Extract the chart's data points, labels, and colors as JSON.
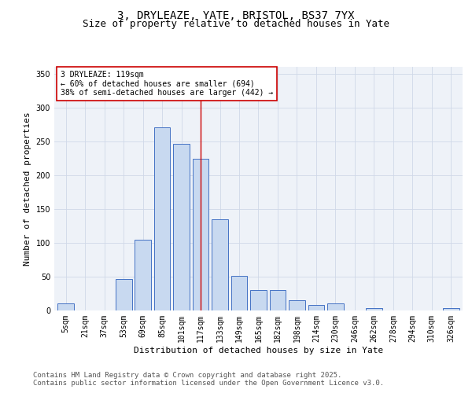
{
  "title_line1": "3, DRYLEAZE, YATE, BRISTOL, BS37 7YX",
  "title_line2": "Size of property relative to detached houses in Yate",
  "xlabel": "Distribution of detached houses by size in Yate",
  "ylabel": "Number of detached properties",
  "bar_labels": [
    "5sqm",
    "21sqm",
    "37sqm",
    "53sqm",
    "69sqm",
    "85sqm",
    "101sqm",
    "117sqm",
    "133sqm",
    "149sqm",
    "165sqm",
    "182sqm",
    "198sqm",
    "214sqm",
    "230sqm",
    "246sqm",
    "262sqm",
    "278sqm",
    "294sqm",
    "310sqm",
    "326sqm"
  ],
  "bar_values": [
    10,
    0,
    0,
    46,
    104,
    271,
    246,
    224,
    135,
    51,
    30,
    30,
    15,
    8,
    10,
    0,
    3,
    0,
    0,
    0,
    3
  ],
  "bar_color": "#c8d9f0",
  "bar_edge_color": "#4472c4",
  "vline_x": 7,
  "vline_color": "#cc0000",
  "annotation_text": "3 DRYLEAZE: 119sqm\n← 60% of detached houses are smaller (694)\n38% of semi-detached houses are larger (442) →",
  "annotation_box_color": "#ffffff",
  "annotation_box_edge": "#cc0000",
  "ylim": [
    0,
    360
  ],
  "yticks": [
    0,
    50,
    100,
    150,
    200,
    250,
    300,
    350
  ],
  "grid_color": "#d0d8e8",
  "background_color": "#eef2f8",
  "footer_text": "Contains HM Land Registry data © Crown copyright and database right 2025.\nContains public sector information licensed under the Open Government Licence v3.0.",
  "title_fontsize": 10,
  "subtitle_fontsize": 9,
  "axis_label_fontsize": 8,
  "tick_fontsize": 7,
  "footer_fontsize": 6.5,
  "annotation_fontsize": 7
}
